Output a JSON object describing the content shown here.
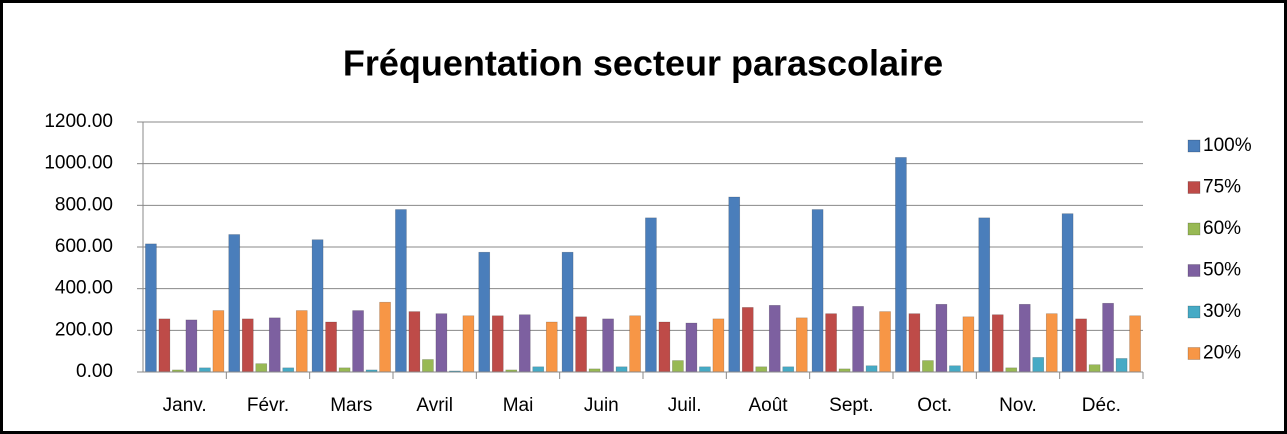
{
  "chart_data": {
    "type": "bar",
    "title": "Fréquentation secteur parascolaire",
    "categories": [
      "Janv.",
      "Févr.",
      "Mars",
      "Avril",
      "Mai",
      "Juin",
      "Juil.",
      "Août",
      "Sept.",
      "Oct.",
      "Nov.",
      "Déc."
    ],
    "series": [
      {
        "name": "100%",
        "color": "#4a7ebb",
        "values": [
          615,
          660,
          635,
          780,
          575,
          575,
          740,
          840,
          780,
          1030,
          740,
          760
        ]
      },
      {
        "name": "75%",
        "color": "#be4b48",
        "values": [
          255,
          255,
          240,
          290,
          270,
          265,
          240,
          310,
          280,
          280,
          275,
          255
        ]
      },
      {
        "name": "60%",
        "color": "#98b954",
        "values": [
          10,
          40,
          20,
          60,
          10,
          15,
          55,
          25,
          15,
          55,
          20,
          35
        ]
      },
      {
        "name": "50%",
        "color": "#7d60a0",
        "values": [
          250,
          260,
          295,
          280,
          275,
          255,
          235,
          320,
          315,
          325,
          325,
          330
        ]
      },
      {
        "name": "30%",
        "color": "#46aac5",
        "values": [
          20,
          20,
          10,
          5,
          25,
          25,
          25,
          25,
          30,
          30,
          70,
          65
        ]
      },
      {
        "name": "20%",
        "color": "#f79646",
        "values": [
          295,
          295,
          335,
          270,
          240,
          270,
          255,
          260,
          290,
          265,
          280,
          270
        ]
      }
    ],
    "ylim": [
      0,
      1200
    ],
    "yticks": [
      {
        "value": 0,
        "label": "0.00"
      },
      {
        "value": 200,
        "label": "200.00"
      },
      {
        "value": 400,
        "label": "400.00"
      },
      {
        "value": 600,
        "label": "600.00"
      },
      {
        "value": 800,
        "label": "800.00"
      },
      {
        "value": 1000,
        "label": "1000.00"
      },
      {
        "value": 1200,
        "label": "1200.00"
      }
    ],
    "grid": true,
    "legend": "right"
  }
}
